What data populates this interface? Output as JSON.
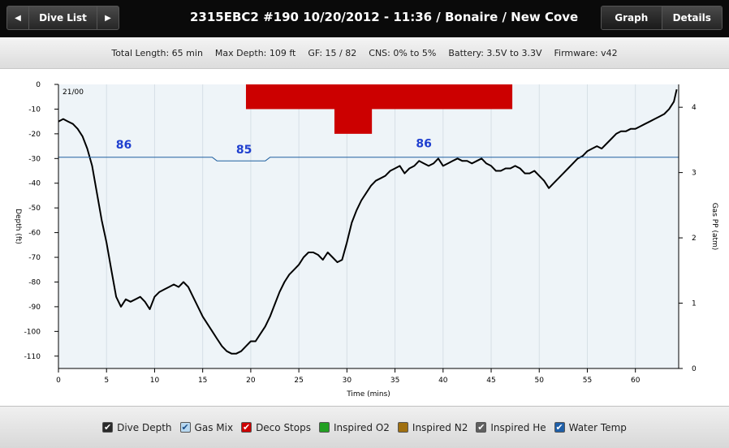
{
  "topbar": {
    "dive_list_label": "Dive List",
    "prev_icon": "arrow-left-icon",
    "next_icon": "arrow-right-icon",
    "title": "2315EBC2 #190 10/20/2012 - 11:36  / Bonaire  / New Cove",
    "tabs": [
      {
        "label": "Graph",
        "active": true
      },
      {
        "label": "Details",
        "active": false
      }
    ]
  },
  "stats": {
    "total_length": "Total Length: 65 min",
    "max_depth": "Max Depth: 109 ft",
    "gf": "GF: 15 / 82",
    "cns": "CNS: 0% to 5%",
    "battery": "Battery: 3.5V to 3.3V",
    "firmware": "Firmware: v42"
  },
  "chart_data": {
    "type": "line",
    "xlabel": "Time (mins)",
    "ylabel": "Depth (ft)",
    "y2label": "Gas PP (atm)",
    "xlim": [
      0,
      64.5
    ],
    "ylim": [
      -115,
      0
    ],
    "y2lim": [
      0,
      4.35
    ],
    "xticks": [
      0,
      5,
      10,
      15,
      20,
      25,
      30,
      35,
      40,
      45,
      50,
      55,
      60
    ],
    "yticks": [
      0,
      -10,
      -20,
      -30,
      -40,
      -50,
      -60,
      -70,
      -80,
      -90,
      -100,
      -110
    ],
    "y2ticks": [
      0,
      1,
      2,
      3,
      4
    ],
    "gas_mix_label": "21/00",
    "series": [
      {
        "name": "Dive Depth",
        "color": "#000000",
        "x": [
          0,
          0.5,
          1,
          1.5,
          2,
          2.5,
          3,
          3.5,
          4,
          4.5,
          5,
          5.5,
          6,
          6.5,
          7,
          7.5,
          8,
          8.5,
          9,
          9.5,
          10,
          10.5,
          11,
          11.5,
          12,
          12.5,
          13,
          13.5,
          14,
          14.5,
          15,
          15.5,
          16,
          16.5,
          17,
          17.5,
          18,
          18.5,
          19,
          19.5,
          20,
          20.5,
          21,
          21.5,
          22,
          22.5,
          23,
          23.5,
          24,
          24.5,
          25,
          25.5,
          26,
          26.5,
          27,
          27.5,
          28,
          28.5,
          29,
          29.5,
          30,
          30.5,
          31,
          31.5,
          32,
          32.5,
          33,
          33.5,
          34,
          34.5,
          35,
          35.5,
          36,
          36.5,
          37,
          37.5,
          38,
          38.5,
          39,
          39.5,
          40,
          40.5,
          41,
          41.5,
          42,
          42.5,
          43,
          43.5,
          44,
          44.5,
          45,
          45.5,
          46,
          46.5,
          47,
          47.5,
          48,
          48.5,
          49,
          49.5,
          50,
          50.5,
          51,
          51.5,
          52,
          52.5,
          53,
          53.5,
          54,
          54.5,
          55,
          55.5,
          56,
          56.5,
          57,
          57.5,
          58,
          58.5,
          59,
          59.5,
          60,
          60.5,
          61,
          61.5,
          62,
          62.5,
          63,
          63.5,
          64,
          64.3
        ],
        "values": [
          -15,
          -14,
          -15,
          -16,
          -18,
          -21,
          -26,
          -33,
          -44,
          -55,
          -64,
          -75,
          -86,
          -90,
          -87,
          -88,
          -87,
          -86,
          -88,
          -91,
          -86,
          -84,
          -83,
          -82,
          -81,
          -82,
          -80,
          -82,
          -86,
          -90,
          -94,
          -97,
          -100,
          -103,
          -106,
          -108,
          -109,
          -109,
          -108,
          -106,
          -104,
          -104,
          -101,
          -98,
          -94,
          -89,
          -84,
          -80,
          -77,
          -75,
          -73,
          -70,
          -68,
          -68,
          -69,
          -71,
          -68,
          -70,
          -72,
          -71,
          -64,
          -56,
          -51,
          -47,
          -44,
          -41,
          -39,
          -38,
          -37,
          -35,
          -34,
          -33,
          -36,
          -34,
          -33,
          -31,
          -32,
          -33,
          -32,
          -30,
          -33,
          -32,
          -31,
          -30,
          -31,
          -31,
          -32,
          -31,
          -30,
          -32,
          -33,
          -35,
          -35,
          -34,
          -34,
          -33,
          -34,
          -36,
          -36,
          -35,
          -37,
          -39,
          -42,
          -40,
          -38,
          -36,
          -34,
          -32,
          -30,
          -29,
          -27,
          -26,
          -25,
          -26,
          -24,
          -22,
          -20,
          -19,
          -19,
          -18,
          -18,
          -17,
          -16,
          -15,
          -14,
          -13,
          -12,
          -10,
          -7,
          -2
        ]
      },
      {
        "name": "Water Temp",
        "color": "#2060a0",
        "x": [
          0,
          16,
          16.5,
          21.5,
          22,
          64.5
        ],
        "values": [
          -29.5,
          -29.5,
          -31,
          -31,
          -29.5,
          -29.5
        ]
      }
    ],
    "deco_stops": [
      {
        "x0": 19.5,
        "x1": 47.2,
        "depth": 10
      },
      {
        "x0": 28.7,
        "x1": 32.6,
        "depth": 20
      }
    ],
    "annotations": [
      {
        "text": "86",
        "x": 6.8,
        "y": -26
      },
      {
        "text": "85",
        "x": 19.3,
        "y": -28
      },
      {
        "text": "86",
        "x": 38.0,
        "y": -25.5
      }
    ]
  },
  "legend": [
    {
      "label": "Dive Depth",
      "checked": true,
      "color": "#2a2a2a"
    },
    {
      "label": "Gas Mix",
      "checked": true,
      "color": "#b8d8f0"
    },
    {
      "label": "Deco Stops",
      "checked": true,
      "color": "#cc0000"
    },
    {
      "label": "Inspired O2",
      "checked": false,
      "color": "#22a022"
    },
    {
      "label": "Inspired N2",
      "checked": false,
      "color": "#a07010"
    },
    {
      "label": "Inspired He",
      "checked": true,
      "color": "#606060"
    },
    {
      "label": "Water Temp",
      "checked": true,
      "color": "#1f5fa8"
    }
  ]
}
